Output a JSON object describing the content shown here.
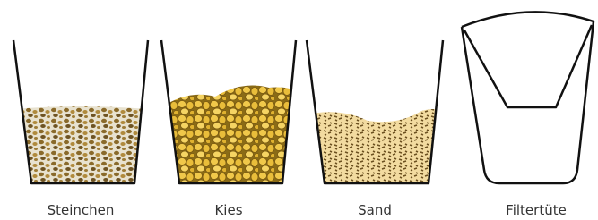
{
  "items": [
    {
      "label": "Steinchen"
    },
    {
      "label": "Kies"
    },
    {
      "label": "Sand"
    },
    {
      "label": "Filtertüte"
    }
  ]
}
